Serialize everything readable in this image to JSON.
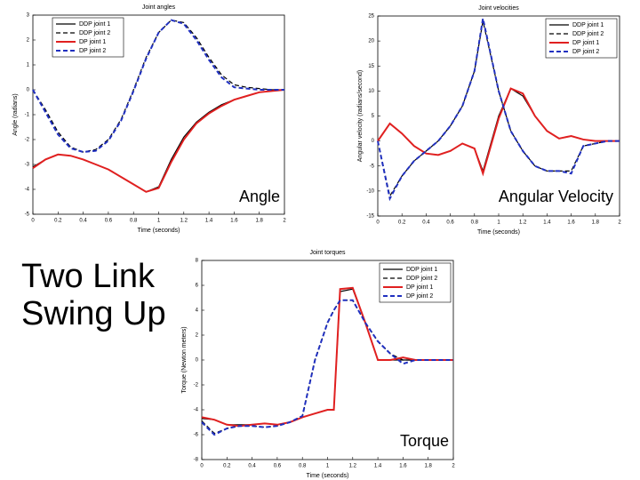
{
  "slide": {
    "title": "Two Link Swing Up"
  },
  "chart_data": [
    {
      "type": "line",
      "title": "Joint angles",
      "x_label": "Time (seconds)",
      "y_label": "Angle (radians)",
      "annotation": "Angle",
      "x": [
        0,
        0.1,
        0.2,
        0.3,
        0.4,
        0.5,
        0.6,
        0.7,
        0.8,
        0.9,
        1,
        1.1,
        1.2,
        1.3,
        1.4,
        1.5,
        1.6,
        1.7,
        1.8,
        1.9,
        2
      ],
      "xlim": [
        0,
        2
      ],
      "xticks": [
        0,
        0.2,
        0.4,
        0.6,
        0.8,
        1,
        1.2,
        1.4,
        1.6,
        1.8,
        2
      ],
      "ylim": [
        -5,
        3
      ],
      "yticks": [
        -5,
        -4,
        -3,
        -2,
        -1,
        0,
        1,
        2,
        3
      ],
      "legend": "upper left",
      "series": [
        {
          "name": "DDP joint 1",
          "color": "#000000",
          "dash": "solid",
          "width": 1.2,
          "values": [
            -3.1,
            -2.8,
            -2.6,
            -2.65,
            -2.8,
            -3.0,
            -3.2,
            -3.5,
            -3.8,
            -4.1,
            -3.9,
            -2.8,
            -1.9,
            -1.3,
            -0.9,
            -0.6,
            -0.4,
            -0.25,
            -0.1,
            -0.05,
            0
          ]
        },
        {
          "name": "DDP joint 2",
          "color": "#000000",
          "dash": "dashed",
          "width": 1.2,
          "values": [
            0,
            -0.8,
            -1.7,
            -2.3,
            -2.5,
            -2.4,
            -2.0,
            -1.2,
            0,
            1.3,
            2.3,
            2.8,
            2.7,
            2.1,
            1.3,
            0.6,
            0.2,
            0.1,
            0.05,
            0,
            0
          ]
        },
        {
          "name": "DP joint 1",
          "color": "#e02020",
          "dash": "solid",
          "width": 2,
          "values": [
            -3.15,
            -2.8,
            -2.6,
            -2.65,
            -2.8,
            -3.0,
            -3.2,
            -3.5,
            -3.8,
            -4.1,
            -3.95,
            -2.9,
            -2.0,
            -1.35,
            -0.95,
            -0.65,
            -0.4,
            -0.25,
            -0.1,
            -0.05,
            0
          ]
        },
        {
          "name": "DP joint 2",
          "color": "#2030c0",
          "dash": "dashed",
          "width": 2,
          "values": [
            0,
            -0.9,
            -1.8,
            -2.35,
            -2.5,
            -2.45,
            -2.05,
            -1.25,
            -0.05,
            1.25,
            2.3,
            2.8,
            2.65,
            2.0,
            1.2,
            0.5,
            0.1,
            0.05,
            0,
            0,
            0
          ]
        }
      ]
    },
    {
      "type": "line",
      "title": "Joint velocities",
      "x_label": "Time (seconds)",
      "y_label": "Angular velocity (radians/second)",
      "annotation": "Angular Velocity",
      "x": [
        0,
        0.1,
        0.2,
        0.3,
        0.4,
        0.5,
        0.6,
        0.7,
        0.8,
        0.87,
        1,
        1.1,
        1.2,
        1.3,
        1.4,
        1.5,
        1.6,
        1.7,
        1.8,
        1.9,
        2
      ],
      "xlim": [
        0,
        2
      ],
      "xticks": [
        0,
        0.2,
        0.4,
        0.6,
        0.8,
        1,
        1.2,
        1.4,
        1.6,
        1.8,
        2
      ],
      "ylim": [
        -15,
        25
      ],
      "yticks": [
        -15,
        -10,
        -5,
        0,
        5,
        10,
        15,
        20,
        25
      ],
      "legend": "upper right",
      "series": [
        {
          "name": "DDP joint 1",
          "color": "#000000",
          "dash": "solid",
          "width": 1.2,
          "values": [
            0,
            3.5,
            1.5,
            -1,
            -2.5,
            -2.8,
            -2,
            -0.5,
            -1.5,
            -6,
            5,
            10.5,
            9,
            5,
            2,
            0.5,
            1,
            0.3,
            0,
            0,
            0
          ]
        },
        {
          "name": "DDP joint 2",
          "color": "#000000",
          "dash": "dashed",
          "width": 1.2,
          "values": [
            0,
            -11,
            -7,
            -4,
            -2,
            0,
            3,
            7,
            14,
            24,
            10,
            2,
            -2,
            -5,
            -6,
            -6,
            -6,
            -1,
            -0.5,
            0,
            0
          ]
        },
        {
          "name": "DP joint 1",
          "color": "#e02020",
          "dash": "solid",
          "width": 2,
          "values": [
            0,
            3.5,
            1.5,
            -1,
            -2.5,
            -2.8,
            -2,
            -0.5,
            -1.5,
            -6.5,
            4.5,
            10.5,
            9.5,
            5,
            2,
            0.5,
            1,
            0.3,
            0,
            0,
            0
          ]
        },
        {
          "name": "DP joint 2",
          "color": "#2030c0",
          "dash": "dashed",
          "width": 2,
          "values": [
            0,
            -11.5,
            -7,
            -4,
            -2,
            0,
            3,
            7,
            14,
            24.5,
            10,
            2,
            -2,
            -5,
            -6,
            -6,
            -6.5,
            -1,
            -0.5,
            0,
            0
          ]
        }
      ]
    },
    {
      "type": "line",
      "title": "Joint torques",
      "x_label": "Time (seconds)",
      "y_label": "Torque (Newton meters)",
      "annotation": "Torque",
      "x": [
        0,
        0.1,
        0.2,
        0.3,
        0.4,
        0.5,
        0.6,
        0.7,
        0.8,
        0.9,
        1,
        1.05,
        1.1,
        1.2,
        1.3,
        1.4,
        1.5,
        1.6,
        1.7,
        1.8,
        1.9,
        2
      ],
      "xlim": [
        0,
        2
      ],
      "xticks": [
        0,
        0.2,
        0.4,
        0.6,
        0.8,
        1,
        1.2,
        1.4,
        1.6,
        1.8,
        2
      ],
      "ylim": [
        -8,
        8
      ],
      "yticks": [
        -8,
        -6,
        -4,
        -2,
        0,
        2,
        4,
        6,
        8
      ],
      "legend": "upper right",
      "series": [
        {
          "name": "DDP joint 1",
          "color": "#000000",
          "dash": "solid",
          "width": 1.2,
          "values": [
            -4.7,
            -4.8,
            -5.2,
            -5.2,
            -5.2,
            -5.1,
            -5.2,
            -5.0,
            -4.6,
            -4.3,
            -4.0,
            -4.0,
            5.5,
            5.7,
            3,
            0,
            0,
            0,
            0,
            0,
            0,
            0
          ]
        },
        {
          "name": "DDP joint 2",
          "color": "#000000",
          "dash": "dashed",
          "width": 1.2,
          "values": [
            -4.9,
            -5.9,
            -5.5,
            -5.3,
            -5.3,
            -5.4,
            -5.3,
            -5.0,
            -4.5,
            0,
            3,
            4,
            4.8,
            4.8,
            3,
            1.5,
            0.5,
            0,
            0,
            0,
            0,
            0
          ]
        },
        {
          "name": "DP joint 1",
          "color": "#e02020",
          "dash": "solid",
          "width": 2,
          "values": [
            -4.6,
            -4.8,
            -5.2,
            -5.3,
            -5.2,
            -5.1,
            -5.2,
            -5.0,
            -4.6,
            -4.3,
            -4.0,
            -4.0,
            5.7,
            5.8,
            3,
            0,
            0,
            0.2,
            0,
            0,
            0,
            0
          ]
        },
        {
          "name": "DP joint 2",
          "color": "#2030c0",
          "dash": "dashed",
          "width": 2,
          "values": [
            -5.0,
            -6.0,
            -5.5,
            -5.3,
            -5.3,
            -5.4,
            -5.3,
            -5.0,
            -4.5,
            0,
            3,
            4,
            4.8,
            4.8,
            3,
            1.5,
            0.5,
            -0.3,
            0,
            0,
            0,
            0
          ]
        }
      ]
    }
  ]
}
